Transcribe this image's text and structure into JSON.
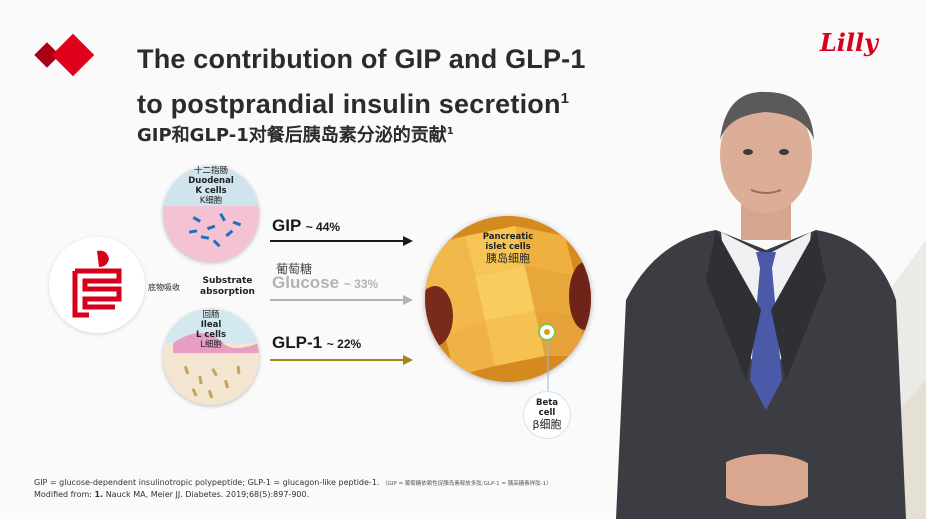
{
  "header": {
    "title_line1": "The contribution of GIP and GLP-1",
    "title_line2": "to postprandial insulin secretion",
    "title_sup": "1",
    "subtitle": "GIP和GLP-1对餐后胰岛素分泌的贡献",
    "subtitle_sup": "1",
    "brand": "Lilly"
  },
  "diagram": {
    "duodenal": {
      "cn": "十二指肠",
      "line1": "Duodenal",
      "line2": "K cells",
      "cn2": "K细胞"
    },
    "ileal": {
      "cn": "回肠",
      "line1": "Ileal",
      "line2": "L cells",
      "cn2": "L细胞"
    },
    "absorption": {
      "cn": "底物吸收",
      "line1": "Substrate",
      "line2": "absorption"
    },
    "pancreatic": {
      "line1": "Pancreatic",
      "line2": "islet cells",
      "cn": "胰岛细胞"
    },
    "beta": {
      "line1": "Beta",
      "line2": "cell",
      "cn": "β细胞"
    },
    "arrows": [
      {
        "name": "GIP",
        "pct": "~ 44%",
        "color": "#1a1a1a"
      },
      {
        "name_cn": "葡萄糖",
        "name": "Glucose",
        "pct": "~ 33%",
        "color": "#b3b3b3"
      },
      {
        "name": "GLP-1",
        "pct": "~ 22%",
        "color": "#a8821a"
      }
    ]
  },
  "footer": {
    "line1": "GIP = glucose-dependent insulinotropic polypeptide; GLP-1 = glucagon-like peptide-1.",
    "line1_cn": "（GIP = 葡萄糖依赖性促胰岛素释放多肽;GLP-1 = 胰高糖素样肽-1）",
    "line2_pre": "Modified from: ",
    "line2_bold": "1.",
    "line2_ref": " Nauck MA, Meier JJ. Diabetes. 2019;68(5):897-900."
  },
  "colors": {
    "accent": "#d6001c",
    "gip": "#1a1a1a",
    "glucose": "#b3b3b3",
    "glp1": "#a8821a"
  }
}
